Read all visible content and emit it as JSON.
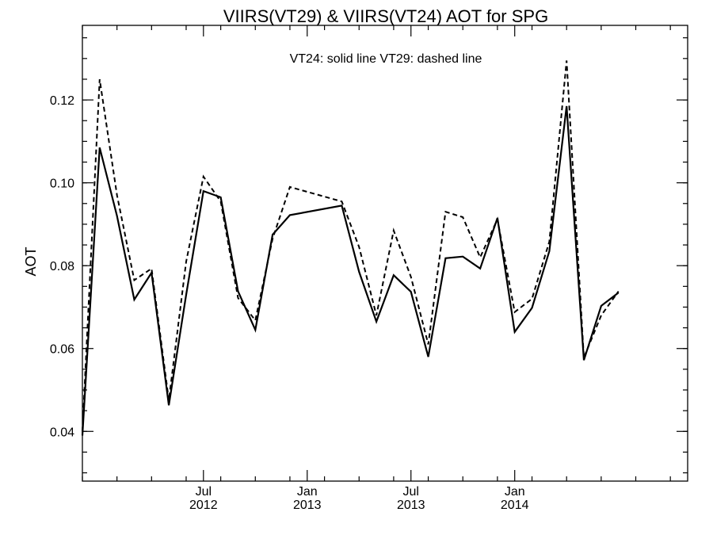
{
  "chart_data": {
    "type": "line",
    "title": "VIIRS(VT29) & VIIRS(VT24)  AOT for SPG",
    "annotation": "VT24: solid line   VT29: dashed line",
    "ylabel": "AOT",
    "xlabel": "",
    "ylim": [
      0.028,
      0.138
    ],
    "xlim": [
      "2011-12",
      "2014-11"
    ],
    "y_ticks": [
      "0.04",
      "0.06",
      "0.08",
      "0.10",
      "0.12"
    ],
    "x_ticks": [
      {
        "month": "Jul",
        "year": "2012",
        "date": "2012-07"
      },
      {
        "month": "Jan",
        "year": "2013",
        "date": "2013-01"
      },
      {
        "month": "Jul",
        "year": "2013",
        "date": "2013-07"
      },
      {
        "month": "Jan",
        "year": "2014",
        "date": "2014-01"
      }
    ],
    "series": [
      {
        "label": "VT24",
        "style": "solid",
        "points": [
          [
            "2011-12",
            0.039
          ],
          [
            "2012-01",
            0.1085
          ],
          [
            "2012-02",
            0.092
          ],
          [
            "2012-03",
            0.0718
          ],
          [
            "2012-04",
            0.0783
          ],
          [
            "2012-05",
            0.0463
          ],
          [
            "2012-06",
            0.073
          ],
          [
            "2012-07",
            0.098
          ],
          [
            "2012-08",
            0.0965
          ],
          [
            "2012-09",
            0.0738
          ],
          [
            "2012-10",
            0.0645
          ],
          [
            "2012-11",
            0.0875
          ],
          [
            "2012-12",
            0.0922
          ],
          [
            "2013-03",
            0.0945
          ],
          [
            "2013-04",
            0.0785
          ],
          [
            "2013-05",
            0.0665
          ],
          [
            "2013-06",
            0.0777
          ],
          [
            "2013-07",
            0.0737
          ],
          [
            "2013-08",
            0.058
          ],
          [
            "2013-09",
            0.0818
          ],
          [
            "2013-10",
            0.0822
          ],
          [
            "2013-11",
            0.0793
          ],
          [
            "2013-12",
            0.0915
          ],
          [
            "2014-01",
            0.064
          ],
          [
            "2014-02",
            0.0698
          ],
          [
            "2014-03",
            0.0835
          ],
          [
            "2014-04",
            0.1185
          ],
          [
            "2014-05",
            0.0572
          ],
          [
            "2014-06",
            0.0703
          ],
          [
            "2014-07",
            0.0735
          ]
        ]
      },
      {
        "label": "VT29",
        "style": "dashed",
        "points": [
          [
            "2011-12",
            0.04
          ],
          [
            "2012-01",
            0.125
          ],
          [
            "2012-02",
            0.097
          ],
          [
            "2012-03",
            0.0765
          ],
          [
            "2012-04",
            0.0793
          ],
          [
            "2012-05",
            0.0475
          ],
          [
            "2012-06",
            0.081
          ],
          [
            "2012-07",
            0.1015
          ],
          [
            "2012-08",
            0.0955
          ],
          [
            "2012-09",
            0.0722
          ],
          [
            "2012-10",
            0.0668
          ],
          [
            "2012-11",
            0.0865
          ],
          [
            "2012-12",
            0.099
          ],
          [
            "2013-03",
            0.0955
          ],
          [
            "2013-04",
            0.0845
          ],
          [
            "2013-05",
            0.068
          ],
          [
            "2013-06",
            0.0885
          ],
          [
            "2013-07",
            0.0773
          ],
          [
            "2013-08",
            0.061
          ],
          [
            "2013-09",
            0.093
          ],
          [
            "2013-10",
            0.0917
          ],
          [
            "2013-11",
            0.082
          ],
          [
            "2013-12",
            0.0912
          ],
          [
            "2014-01",
            0.0688
          ],
          [
            "2014-02",
            0.072
          ],
          [
            "2014-03",
            0.0858
          ],
          [
            "2014-04",
            0.1295
          ],
          [
            "2014-05",
            0.0578
          ],
          [
            "2014-06",
            0.068
          ],
          [
            "2014-07",
            0.0738
          ]
        ]
      }
    ]
  }
}
